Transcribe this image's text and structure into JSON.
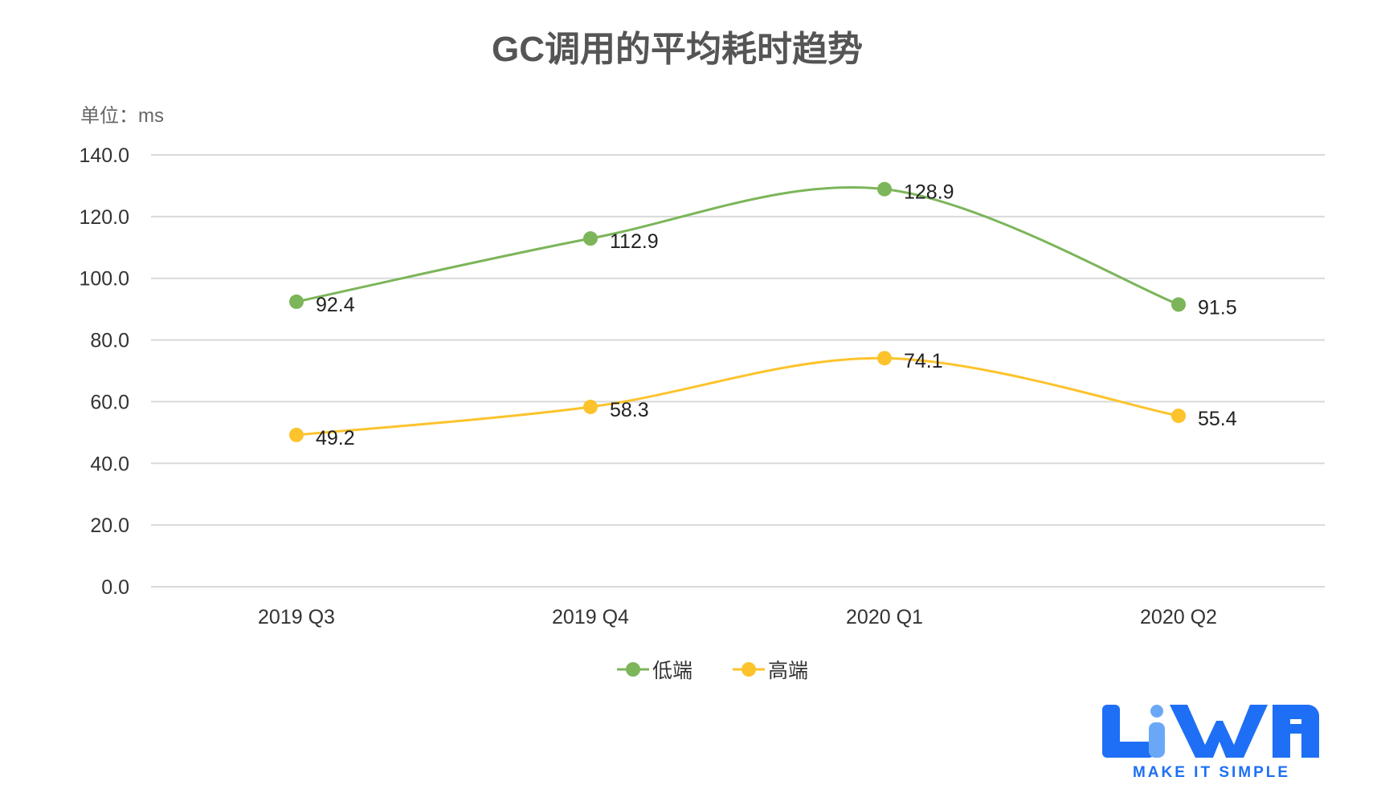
{
  "chart_data": {
    "type": "line",
    "title": "GC调用的平均耗时趋势",
    "unit_label": "单位：ms",
    "categories": [
      "2019 Q3",
      "2019 Q4",
      "2020 Q1",
      "2020 Q2"
    ],
    "series": [
      {
        "name": "低端",
        "color": "#7cb55a",
        "values": [
          92.4,
          112.9,
          128.9,
          91.5
        ]
      },
      {
        "name": "高端",
        "color": "#fcc32c",
        "values": [
          49.2,
          58.3,
          74.1,
          55.4
        ]
      }
    ],
    "ylim": [
      0,
      140
    ],
    "yticks": [
      0,
      20,
      40,
      60,
      80,
      100,
      120,
      140
    ],
    "ytick_labels": [
      "0.0",
      "20.0",
      "40.0",
      "60.0",
      "80.0",
      "100.0",
      "120.0",
      "140.0"
    ],
    "grid": true,
    "smooth": true,
    "legend_position": "bottom"
  },
  "logo": {
    "text": "LiWA",
    "tagline": "MAKE IT SIMPLE",
    "color": "#1e6ff5"
  }
}
